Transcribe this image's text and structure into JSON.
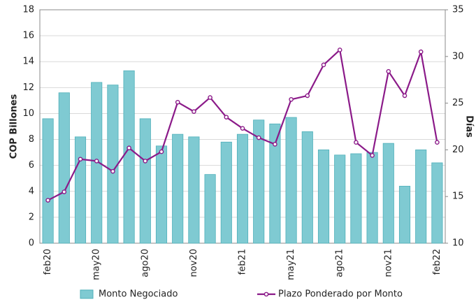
{
  "chart_data": {
    "type": "bar-line",
    "categories": [
      "feb20",
      null,
      null,
      "may20",
      null,
      null,
      "ago20",
      null,
      null,
      "nov20",
      null,
      null,
      "feb21",
      null,
      null,
      "may21",
      null,
      null,
      "ago21",
      null,
      null,
      "nov21",
      null,
      null,
      "feb22"
    ],
    "series": [
      {
        "name": "Monto Negociado",
        "type": "bar",
        "color": "#7fcad2",
        "values": [
          9.6,
          11.6,
          8.2,
          12.4,
          12.2,
          13.3,
          9.6,
          7.5,
          8.4,
          8.2,
          5.3,
          7.8,
          8.4,
          9.5,
          9.2,
          9.7,
          8.6,
          7.2,
          6.8,
          6.9,
          7.0,
          7.7,
          4.4,
          7.2,
          6.2
        ]
      },
      {
        "name": "Plazo Ponderado por Monto",
        "type": "line",
        "axis": "y2",
        "color": "#8b1a89",
        "values": [
          14.6,
          15.5,
          19.0,
          18.8,
          17.7,
          20.2,
          18.8,
          19.8,
          25.1,
          24.1,
          25.6,
          23.5,
          22.3,
          21.3,
          20.6,
          25.4,
          25.8,
          29.1,
          30.7,
          20.8,
          19.4,
          28.4,
          25.8,
          30.5,
          20.8
        ]
      }
    ],
    "y_label": "COP Billones",
    "y2_label": "Días",
    "ylim": [
      0,
      18
    ],
    "yticks": [
      0,
      2,
      4,
      6,
      8,
      10,
      12,
      14,
      16,
      18
    ],
    "y2lim": [
      10,
      35
    ],
    "y2ticks": [
      10,
      15,
      20,
      25,
      30,
      35
    ],
    "grid": true,
    "legend": "bottom"
  }
}
